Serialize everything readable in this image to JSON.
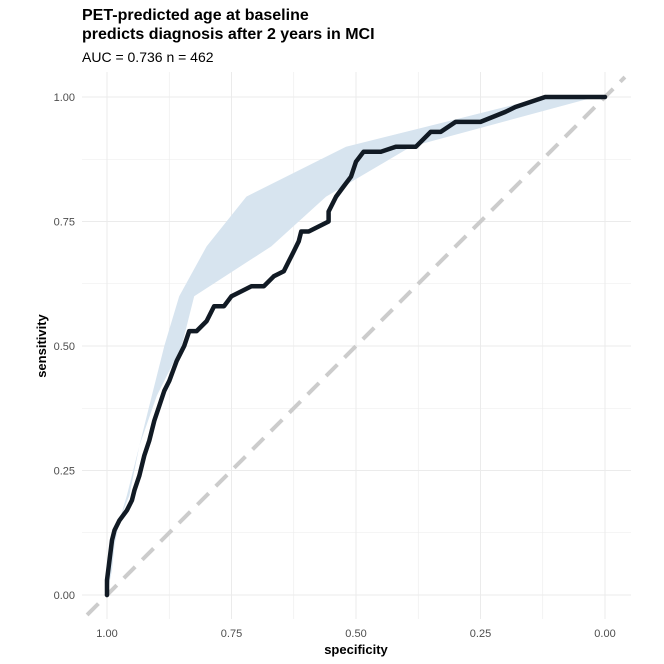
{
  "title_lines": [
    "PET-predicted age at baseline",
    "predicts diagnosis after 2 years in MCI"
  ],
  "subtitle": "AUC =  0.736 n =  462",
  "chart_data": {
    "type": "line",
    "title": "PET-predicted age at baseline predicts diagnosis after 2 years in MCI",
    "subtitle": "AUC =  0.736 n =  462",
    "xlabel": "specificity",
    "ylabel": "sensitivity",
    "xlim": [
      1.0,
      0.0
    ],
    "ylim": [
      0.0,
      1.0
    ],
    "x_reversed": true,
    "x_ticks": [
      1.0,
      0.75,
      0.5,
      0.25,
      0.0
    ],
    "x_tick_labels": [
      "1.00",
      "0.75",
      "0.50",
      "0.25",
      "0.00"
    ],
    "y_ticks": [
      0.0,
      0.25,
      0.5,
      0.75,
      1.0
    ],
    "y_tick_labels": [
      "0.00",
      "0.25",
      "0.50",
      "0.75",
      "1.00"
    ],
    "grid": true,
    "colors": {
      "roc_line": "#111a24",
      "ci_band": "#d7e4ef",
      "reference_line": "#cccccc",
      "grid": "#ebebeb"
    },
    "roc_curve": {
      "specificity": [
        1.0,
        1.0,
        0.995,
        0.99,
        0.985,
        0.975,
        0.96,
        0.95,
        0.945,
        0.935,
        0.925,
        0.915,
        0.905,
        0.895,
        0.885,
        0.875,
        0.86,
        0.845,
        0.835,
        0.82,
        0.8,
        0.785,
        0.765,
        0.75,
        0.73,
        0.71,
        0.685,
        0.665,
        0.645,
        0.635,
        0.625,
        0.615,
        0.61,
        0.6,
        0.595,
        0.555,
        0.555,
        0.54,
        0.525,
        0.51,
        0.5,
        0.485,
        0.47,
        0.45,
        0.42,
        0.38,
        0.35,
        0.33,
        0.3,
        0.25,
        0.2,
        0.18,
        0.15,
        0.12,
        0.09,
        0.05,
        0.0
      ],
      "sensitivity": [
        0.0,
        0.03,
        0.07,
        0.11,
        0.13,
        0.15,
        0.17,
        0.19,
        0.21,
        0.24,
        0.28,
        0.31,
        0.35,
        0.38,
        0.41,
        0.43,
        0.47,
        0.5,
        0.53,
        0.53,
        0.55,
        0.58,
        0.58,
        0.6,
        0.61,
        0.62,
        0.62,
        0.64,
        0.65,
        0.67,
        0.69,
        0.71,
        0.73,
        0.73,
        0.73,
        0.75,
        0.77,
        0.8,
        0.82,
        0.84,
        0.87,
        0.89,
        0.89,
        0.89,
        0.9,
        0.9,
        0.93,
        0.93,
        0.95,
        0.95,
        0.97,
        0.98,
        0.99,
        1.0,
        1.0,
        1.0,
        1.0
      ]
    },
    "ci_band": {
      "sensitivity": [
        0.0,
        0.05,
        0.1,
        0.15,
        0.2,
        0.3,
        0.4,
        0.5,
        0.6,
        0.7,
        0.8,
        0.9,
        1.0
      ],
      "specificity_upper": [
        1.0,
        0.99,
        0.985,
        0.975,
        0.96,
        0.935,
        0.91,
        0.885,
        0.855,
        0.8,
        0.72,
        0.52,
        0.12
      ],
      "specificity_lower": [
        1.0,
        0.995,
        0.995,
        0.975,
        0.955,
        0.935,
        0.9,
        0.85,
        0.825,
        0.67,
        0.56,
        0.39,
        0.02
      ]
    },
    "reference_line": {
      "specificity": [
        1.0,
        0.0
      ],
      "sensitivity": [
        0.0,
        1.0
      ]
    }
  }
}
